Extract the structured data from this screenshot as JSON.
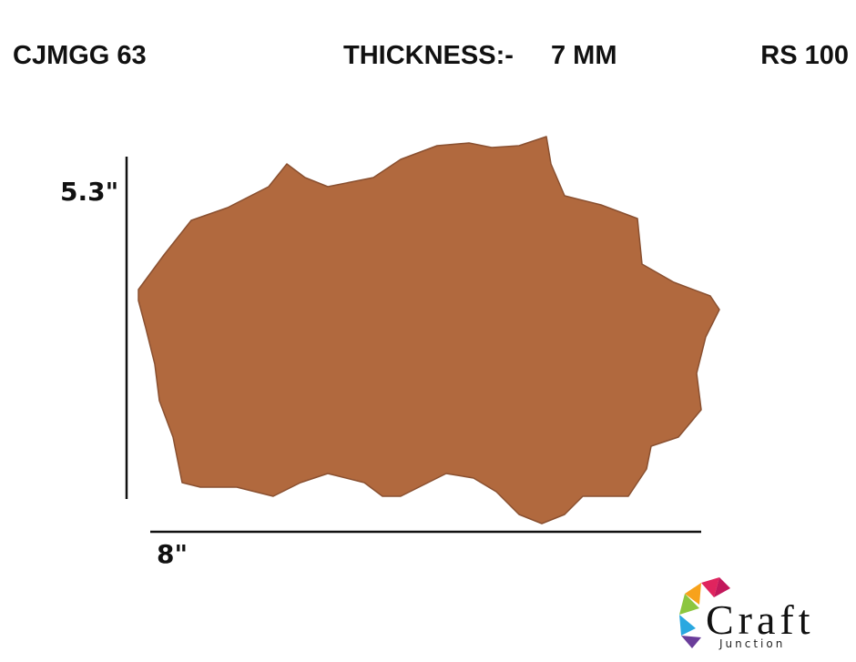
{
  "header": {
    "code": "CJMGG 63",
    "thickness_label": "THICKNESS:-",
    "thickness_value": "7 MM",
    "price": "RS 100"
  },
  "dimensions": {
    "height": "5.3\"",
    "width": "8\""
  },
  "logo": {
    "name": "Craft",
    "subtitle": "Junction"
  }
}
